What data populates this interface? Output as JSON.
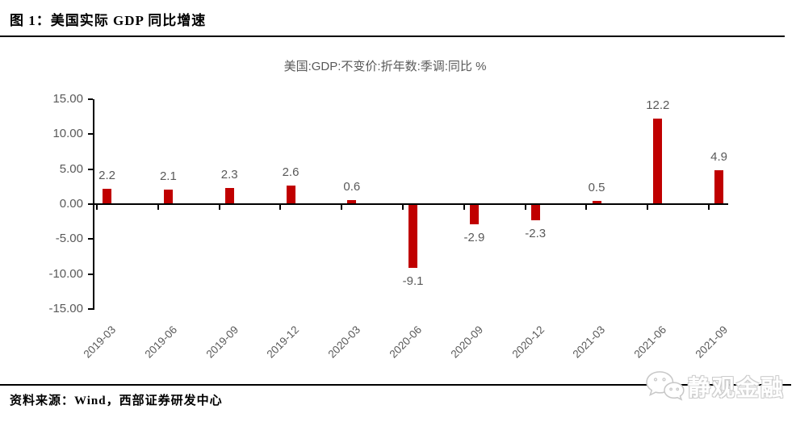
{
  "header": {
    "title": "图 1：美国实际 GDP 同比增速"
  },
  "footer": {
    "source": "资料来源：Wind，西部证券研发中心",
    "watermark": "静观金融"
  },
  "chart_data": {
    "type": "bar",
    "title": "美国:GDP:不变价:折年数:季调:同比 %",
    "categories": [
      "2019-03",
      "2019-06",
      "2019-09",
      "2019-12",
      "2020-03",
      "2020-06",
      "2020-09",
      "2020-12",
      "2021-03",
      "2021-06",
      "2021-09"
    ],
    "values": [
      2.2,
      2.1,
      2.3,
      2.6,
      0.6,
      -9.1,
      -2.9,
      -2.3,
      0.5,
      12.2,
      4.9
    ],
    "data_labels": [
      "2.2",
      "2.1",
      "2.3",
      "2.6",
      "0.6",
      "-9.1",
      "-2.9",
      "-2.3",
      "0.5",
      "12.2",
      "4.9"
    ],
    "ylim": [
      -15,
      15
    ],
    "ytick_step": 5,
    "ytick_labels": [
      "15.00",
      "10.00",
      "5.00",
      "0.00",
      "-5.00",
      "-10.00",
      "-15.00"
    ],
    "bar_color": "#c00000",
    "label_color": "#595959",
    "axis_color": "#000000",
    "grid": false,
    "legend": "none",
    "xlabel": "",
    "ylabel": ""
  }
}
